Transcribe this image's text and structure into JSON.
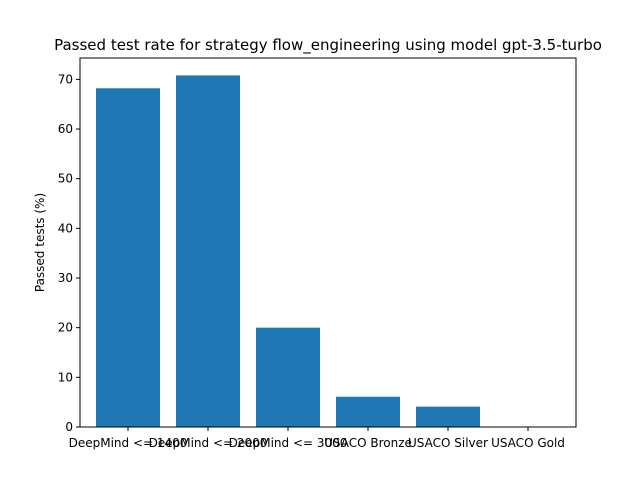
{
  "chart_data": {
    "type": "bar",
    "title": "Passed test rate for strategy flow_engineering using model gpt-3.5-turbo",
    "xlabel": "",
    "ylabel": "Passed tests (%)",
    "categories": [
      "DeepMind <= 1400",
      "DeepMind <= 2000",
      "DeepMind <= 3000",
      "USACO Bronze",
      "USACO Silver",
      "USACO Gold"
    ],
    "values": [
      68.2,
      70.8,
      20.0,
      6.1,
      4.1,
      0.0
    ],
    "ylim": [
      0,
      74.3
    ],
    "yticks": [
      0,
      10,
      20,
      30,
      40,
      50,
      60,
      70
    ],
    "grid": false,
    "bar_color": "#1f77b4"
  }
}
